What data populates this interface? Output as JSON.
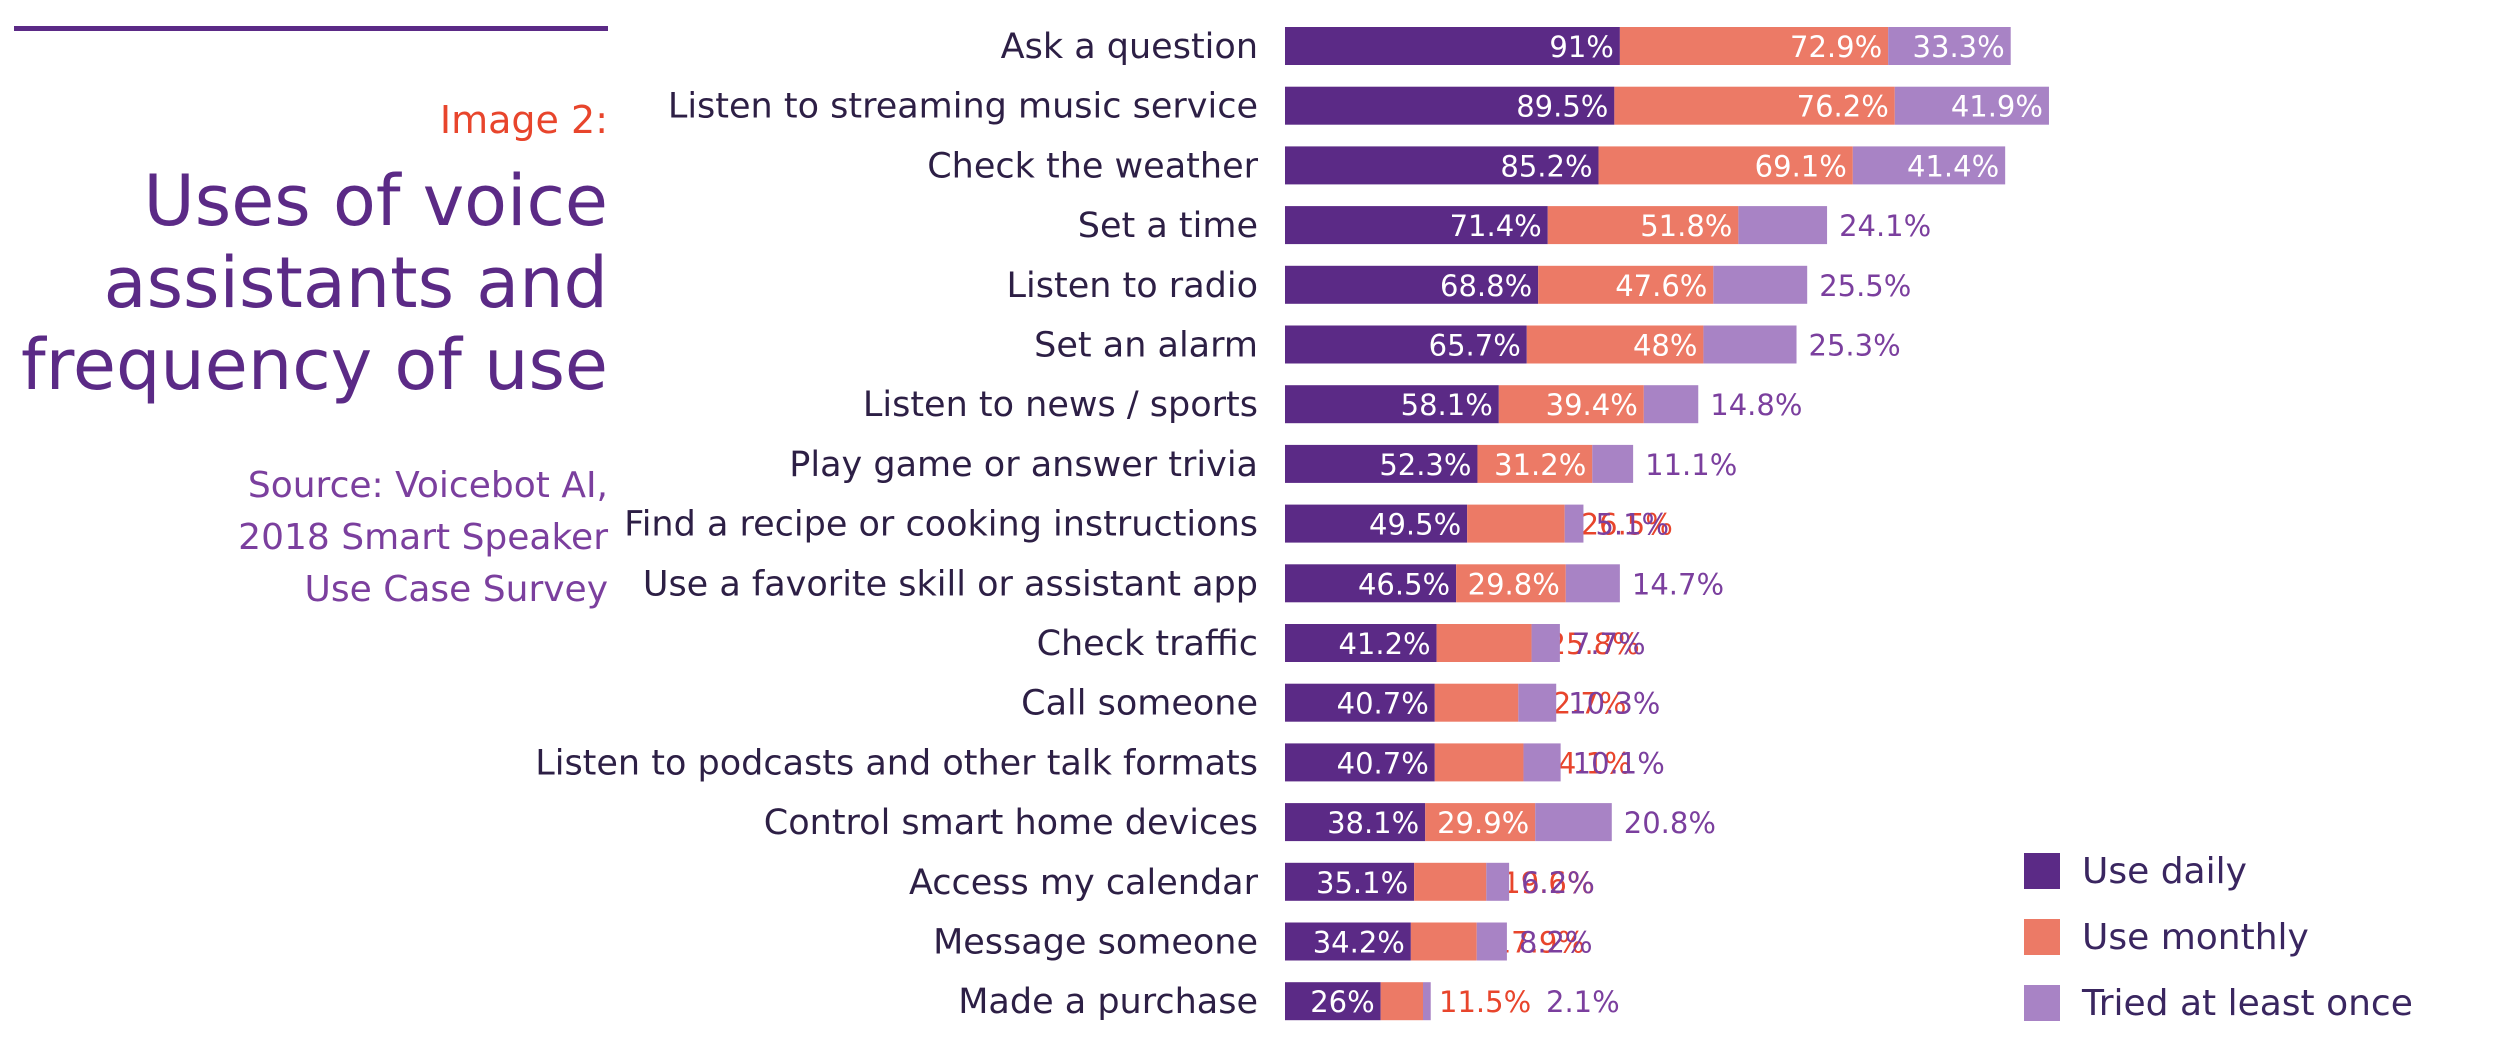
{
  "header": {
    "image_label": "Image 2:",
    "title_lines": [
      "Uses of voice",
      "assistants and",
      "frequency of use"
    ],
    "source_lines": [
      "Source: Voicebot AI,",
      "2018 Smart Speaker",
      "Use Case Survey"
    ]
  },
  "colors": {
    "use_daily": "#5b2a86",
    "use_monthly": "#ec7a66",
    "tried_at_least_once": "#a883c5",
    "accent_title": "#5b2a86",
    "accent_label": "#e8452c"
  },
  "legend": [
    {
      "label": "Use daily",
      "color": "#5b2a86"
    },
    {
      "label": "Use monthly",
      "color": "#ec7a66"
    },
    {
      "label": "Tried at least once",
      "color": "#a883c5"
    }
  ],
  "chart_data": {
    "type": "bar",
    "orientation": "horizontal",
    "stacked": true,
    "title": "Uses of voice assistants and frequency of use",
    "categories": [
      "Ask a question",
      "Listen to streaming music service",
      "Check the weather",
      "Set a time",
      "Listen to radio",
      "Set an alarm",
      "Listen to news / sports",
      "Play game or answer trivia",
      "Find a recipe or cooking instructions",
      "Use a favorite skill or assistant app",
      "Check traffic",
      "Call someone",
      "Listen to podcasts and other talk formats",
      "Control smart home devices",
      "Access my calendar",
      "Message someone",
      "Made a purchase"
    ],
    "series": [
      {
        "name": "Use daily",
        "labels": [
          "91%",
          "89.5%",
          "85.2%",
          "71.4%",
          "68.8%",
          "65.7%",
          "58.1%",
          "52.3%",
          "49.5%",
          "46.5%",
          "41.2%",
          "40.7%",
          "40.7%",
          "38.1%",
          "35.1%",
          "34.2%",
          "26%"
        ],
        "values": [
          91,
          89.5,
          85.2,
          71.4,
          68.8,
          65.7,
          58.1,
          52.3,
          49.5,
          46.5,
          41.2,
          40.7,
          40.7,
          38.1,
          35.1,
          34.2,
          26
        ]
      },
      {
        "name": "Use monthly",
        "labels": [
          "72.9%",
          "76.2%",
          "69.1%",
          "51.8%",
          "47.6%",
          "48%",
          "39.4%",
          "31.2%",
          "26.5%",
          "29.8%",
          "25.8%",
          "22.7%",
          "24.1%",
          "29.9%",
          "19.6%",
          "17.9%",
          "11.5%"
        ],
        "values": [
          72.9,
          76.2,
          69.1,
          51.8,
          47.6,
          48,
          39.4,
          31.2,
          26.5,
          29.8,
          25.8,
          22.7,
          24.1,
          29.9,
          19.6,
          17.9,
          11.5
        ]
      },
      {
        "name": "Tried at least once",
        "labels": [
          "33.3%",
          "41.9%",
          "41.4%",
          "24.1%",
          "25.5%",
          "25.3%",
          "14.8%",
          "11.1%",
          "5.1%",
          "14.7%",
          "7.7%",
          "10.3%",
          "10.1%",
          "20.8%",
          "6.2%",
          "8.2%",
          "2.1%"
        ],
        "values": [
          33.3,
          41.9,
          41.4,
          24.1,
          25.5,
          25.3,
          14.8,
          11.1,
          5.1,
          14.7,
          7.7,
          10.3,
          10.1,
          20.8,
          6.2,
          8.2,
          2.1
        ]
      }
    ],
    "legend_position": "bottom-right",
    "grid": false
  }
}
